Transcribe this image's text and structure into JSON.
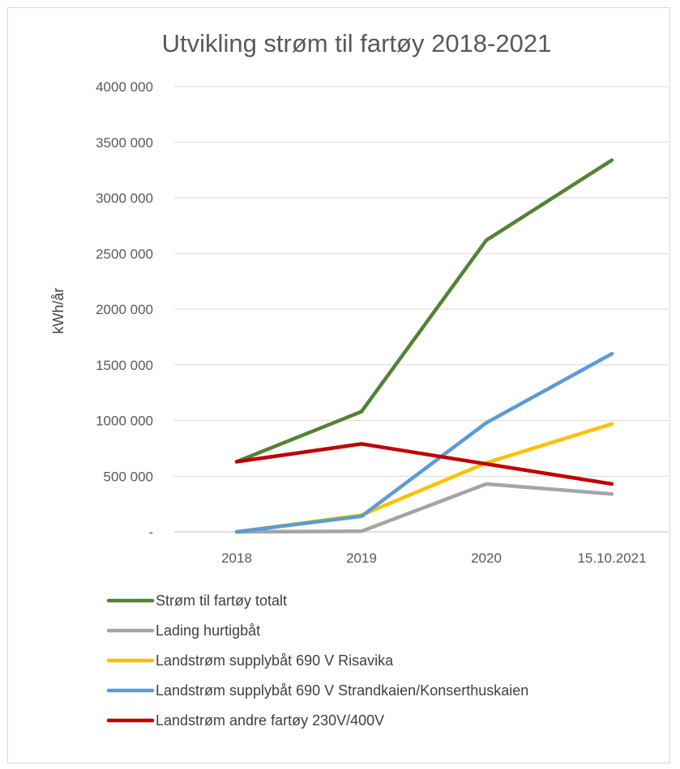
{
  "chart_data": {
    "type": "line",
    "title": "Utvikling strøm til fartøy 2018-2021",
    "xlabel": "",
    "ylabel": "kWh/år",
    "categories": [
      "2018",
      "2019",
      "2020",
      "15.10.2021"
    ],
    "ylim": [
      0,
      4000000
    ],
    "yticks": [
      0,
      500000,
      1000000,
      1500000,
      2000000,
      2500000,
      3000000,
      3500000,
      4000000
    ],
    "ytick_labels": [
      "-",
      "500 000",
      "1000 000",
      "1500 000",
      "2000 000",
      "2500 000",
      "3000 000",
      "3500 000",
      "4000 000"
    ],
    "grid": true,
    "legend_position": "bottom",
    "series": [
      {
        "name": "Strøm til fartøy totalt",
        "color": "#548235",
        "values": [
          630000,
          1080000,
          2620000,
          3340000
        ]
      },
      {
        "name": "Lading hurtigbåt",
        "color": "#a5a5a5",
        "values": [
          0,
          5000,
          430000,
          340000
        ]
      },
      {
        "name": "Landstrøm supplybåt 690 V Risavika",
        "color": "#ffc000",
        "values": [
          0,
          150000,
          620000,
          970000
        ]
      },
      {
        "name": "Landstrøm supplybåt 690 V Strandkaien/Konserthuskaien",
        "color": "#5b9bd5",
        "values": [
          0,
          140000,
          980000,
          1600000
        ]
      },
      {
        "name": "Landstrøm andre fartøy 230V/400V",
        "color": "#c00000",
        "values": [
          630000,
          790000,
          610000,
          430000
        ]
      }
    ]
  }
}
